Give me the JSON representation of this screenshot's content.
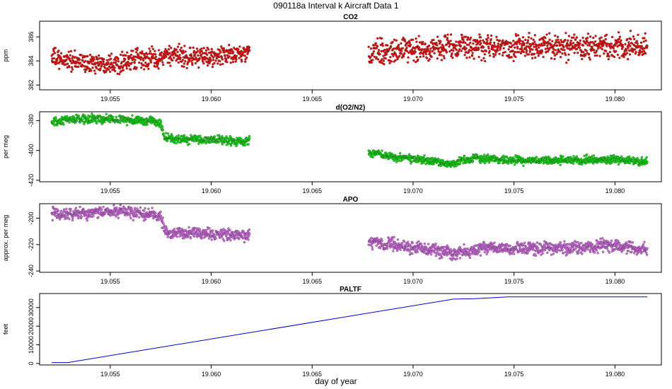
{
  "figure": {
    "title": "090118a   Interval k Aircraft Data 1",
    "xlabel": "day of year"
  },
  "colors": {
    "co2": "#ff0000",
    "o2n2": "#00ee00",
    "apo": "#dd66ee",
    "paltf": "#0000cc",
    "axis": "#000000"
  },
  "chart_data": [
    {
      "type": "scatter",
      "title": "CO2",
      "ylabel": "ppm",
      "xlim": [
        19.0515,
        19.0823
      ],
      "ylim": [
        381.6,
        387.3
      ],
      "x_ticks": [
        19.055,
        19.06,
        19.065,
        19.07,
        19.075,
        19.08
      ],
      "x_tick_labels": [
        "19.055",
        "19.060",
        "19.065",
        "19.070",
        "19.075",
        "19.080"
      ],
      "y_ticks": [
        382,
        384,
        386
      ],
      "y_tick_labels": [
        "382",
        "384",
        "386"
      ],
      "segments": [
        {
          "x_start": 19.0521,
          "x_end": 19.0619,
          "profile": [
            [
              19.0521,
              384.2
            ],
            [
              19.054,
              383.8
            ],
            [
              19.0555,
              383.9
            ],
            [
              19.058,
              384.4
            ],
            [
              19.06,
              384.3
            ],
            [
              19.0619,
              384.7
            ]
          ],
          "scatter_sd": 0.5
        },
        {
          "x_start": 19.0678,
          "x_end": 19.0816,
          "profile": [
            [
              19.0678,
              384.6
            ],
            [
              19.069,
              384.8
            ],
            [
              19.071,
              385.1
            ],
            [
              19.074,
              385.2
            ],
            [
              19.078,
              385.2
            ],
            [
              19.0816,
              385.1
            ]
          ],
          "scatter_sd": 0.6
        }
      ]
    },
    {
      "type": "scatter",
      "title": "d(O2/N2)",
      "ylabel": "per meg",
      "xlim": [
        19.0515,
        19.0823
      ],
      "ylim": [
        -421,
        -374
      ],
      "x_ticks": [
        19.055,
        19.06,
        19.065,
        19.07,
        19.075,
        19.08
      ],
      "x_tick_labels": [
        "19.055",
        "19.060",
        "19.065",
        "19.070",
        "19.075",
        "19.080"
      ],
      "y_ticks": [
        -380,
        -400,
        -420
      ],
      "y_tick_labels": [
        "-380",
        "-400",
        "-420"
      ],
      "segments": [
        {
          "x_start": 19.0521,
          "x_end": 19.0619,
          "profile": [
            [
              19.0521,
              -382
            ],
            [
              19.053,
              -379
            ],
            [
              19.0555,
              -379
            ],
            [
              19.0575,
              -381
            ],
            [
              19.0577,
              -392
            ],
            [
              19.06,
              -393
            ],
            [
              19.0619,
              -394
            ]
          ],
          "scatter_sd": 1.8
        },
        {
          "x_start": 19.0678,
          "x_end": 19.0816,
          "profile": [
            [
              19.0678,
              -401
            ],
            [
              19.069,
              -404
            ],
            [
              19.0705,
              -406
            ],
            [
              19.0718,
              -409
            ],
            [
              19.073,
              -405
            ],
            [
              19.076,
              -407
            ],
            [
              19.08,
              -406
            ],
            [
              19.0816,
              -408
            ]
          ],
          "scatter_sd": 1.6
        }
      ]
    },
    {
      "type": "scatter",
      "title": "APO",
      "ylabel": "approx. per meg",
      "xlim": [
        19.0515,
        19.0823
      ],
      "ylim": [
        -241,
        -189
      ],
      "x_ticks": [
        19.055,
        19.06,
        19.065,
        19.07,
        19.075,
        19.08
      ],
      "x_tick_labels": [
        "19.055",
        "19.060",
        "19.065",
        "19.070",
        "19.075",
        "19.080"
      ],
      "y_ticks": [
        -200,
        -220,
        -240
      ],
      "y_tick_labels": [
        "-200",
        "-220",
        "-240"
      ],
      "segments": [
        {
          "x_start": 19.0521,
          "x_end": 19.0619,
          "profile": [
            [
              19.0521,
              -197
            ],
            [
              19.054,
              -196
            ],
            [
              19.0555,
              -195
            ],
            [
              19.0575,
              -198
            ],
            [
              19.0577,
              -211
            ],
            [
              19.06,
              -212
            ],
            [
              19.0619,
              -213
            ]
          ],
          "scatter_sd": 2.6
        },
        {
          "x_start": 19.0678,
          "x_end": 19.0816,
          "profile": [
            [
              19.0678,
              -218
            ],
            [
              19.07,
              -222
            ],
            [
              19.072,
              -227
            ],
            [
              19.0735,
              -222
            ],
            [
              19.076,
              -223
            ],
            [
              19.08,
              -221
            ],
            [
              19.0816,
              -224
            ]
          ],
          "scatter_sd": 2.8
        }
      ]
    },
    {
      "type": "line",
      "title": "PALTF",
      "ylabel": "feet",
      "xlim": [
        19.0515,
        19.0823
      ],
      "ylim": [
        -800,
        37500
      ],
      "x_ticks": [
        19.055,
        19.06,
        19.065,
        19.07,
        19.075,
        19.08
      ],
      "x_tick_labels": [
        "19.055",
        "19.060",
        "19.065",
        "19.070",
        "19.075",
        "19.080"
      ],
      "y_ticks": [
        0,
        10000,
        20000,
        30000
      ],
      "y_tick_labels": [
        "0",
        "10000",
        "20000",
        "30000"
      ],
      "x": [
        19.0521,
        19.0529,
        19.072,
        19.073,
        19.0747,
        19.0816
      ],
      "y": [
        500,
        500,
        34500,
        34700,
        35700,
        35700
      ]
    }
  ]
}
